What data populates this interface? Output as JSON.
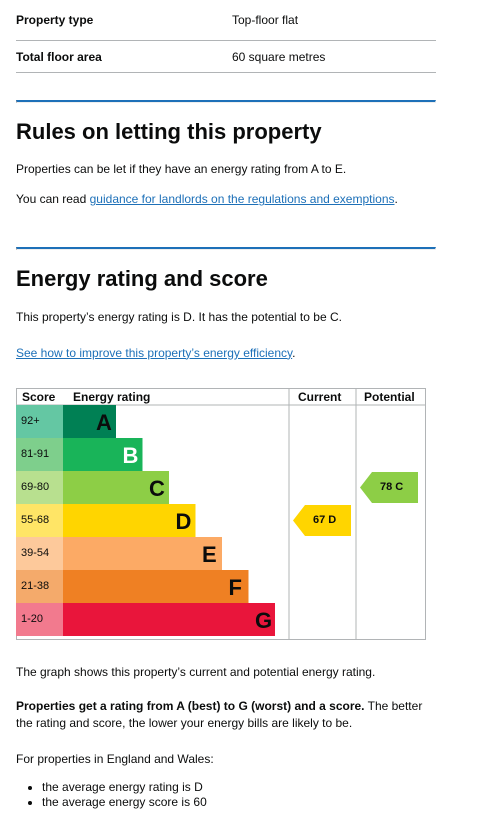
{
  "summary": {
    "rows": [
      {
        "label": "Property type",
        "value": "Top-floor flat"
      },
      {
        "label": "Total floor area",
        "value": "60 square metres"
      }
    ]
  },
  "letting": {
    "heading": "Rules on letting this property",
    "para1": "Properties can be let if they have an energy rating from A to E.",
    "para2_prefix": "You can read ",
    "para2_link": "guidance for landlords on the regulations and exemptions",
    "para2_suffix": "."
  },
  "rating": {
    "heading": "Energy rating and score",
    "intro": "This property’s energy rating is D. It has the potential to be C.",
    "improve_link": "See how to improve this property’s energy efficiency",
    "improve_suffix": "."
  },
  "chart_data": {
    "type": "bar",
    "headers": {
      "score": "Score",
      "rating": "Energy rating",
      "current": "Current",
      "potential": "Potential"
    },
    "bands": [
      {
        "range": "92+",
        "letter": "A",
        "color": "#008054",
        "label_bg": "#64c7a3"
      },
      {
        "range": "81-91",
        "letter": "B",
        "color": "#19b459",
        "label_bg": "#7ecf8c"
      },
      {
        "range": "69-80",
        "letter": "C",
        "color": "#8dce46",
        "label_bg": "#b8e08f"
      },
      {
        "range": "55-68",
        "letter": "D",
        "color": "#ffd500",
        "label_bg": "#ffe566"
      },
      {
        "range": "39-54",
        "letter": "E",
        "color": "#fcaa65",
        "label_bg": "#fdc99b"
      },
      {
        "range": "21-38",
        "letter": "F",
        "color": "#ef8023",
        "label_bg": "#f4aa6b"
      },
      {
        "range": "1-20",
        "letter": "G",
        "color": "#e9153b",
        "label_bg": "#f27a8e"
      }
    ],
    "current": {
      "score": 67,
      "letter": "D",
      "label": "67 D",
      "color": "#ffd500"
    },
    "potential": {
      "score": 78,
      "letter": "C",
      "label": "78 C",
      "color": "#8dce46"
    }
  },
  "after": {
    "graph_note": "The graph shows this property’s current and potential energy rating.",
    "bold_lead": "Properties get a rating from A (best) to G (worst) and a score.",
    "rest": " The better the rating and score, the lower your energy bills are likely to be.",
    "england": "For properties in England and Wales:",
    "bullets": [
      "the average energy rating is D",
      "the average energy score is 60"
    ]
  }
}
